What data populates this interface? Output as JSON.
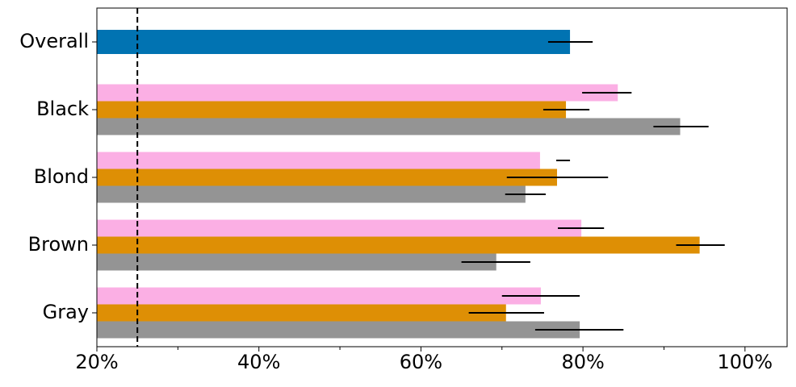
{
  "chart_data": {
    "type": "hbar",
    "categories": [
      "Overall",
      "Black",
      "Blond",
      "Brown",
      "Gray"
    ],
    "series": [
      {
        "color": "#0173b2",
        "values": [
          78.4,
          null,
          null,
          null,
          null
        ],
        "errors": [
          [
            75.7,
            81.2
          ],
          null,
          null,
          null,
          null
        ]
      },
      {
        "color": "#fbafe4",
        "values": [
          null,
          84.3,
          74.7,
          79.8,
          74.8
        ],
        "errors": [
          null,
          [
            79.9,
            86.0
          ],
          [
            76.7,
            78.4
          ],
          [
            76.9,
            82.6
          ],
          [
            70.0,
            79.6
          ]
        ]
      },
      {
        "color": "#de8f05",
        "values": [
          null,
          77.9,
          76.8,
          94.4,
          70.5
        ],
        "errors": [
          null,
          [
            75.1,
            80.8
          ],
          [
            70.6,
            83.1
          ],
          [
            91.5,
            97.5
          ],
          [
            65.9,
            75.2
          ]
        ]
      },
      {
        "color": "#949494",
        "values": [
          null,
          92.0,
          72.9,
          69.3,
          79.6
        ],
        "errors": [
          null,
          [
            88.7,
            95.5
          ],
          [
            70.4,
            75.4
          ],
          [
            65.0,
            73.5
          ],
          [
            74.1,
            85.0
          ]
        ]
      }
    ],
    "xlim": [
      20,
      105.2
    ],
    "xticks": [
      {
        "value": 20,
        "label": "20%"
      },
      {
        "value": 40,
        "label": "40%"
      },
      {
        "value": 60,
        "label": "60%"
      },
      {
        "value": 80,
        "label": "80%"
      },
      {
        "value": 100,
        "label": "100%"
      }
    ],
    "xminorticks": [
      30,
      50,
      70,
      90
    ],
    "reference_line": 25
  }
}
